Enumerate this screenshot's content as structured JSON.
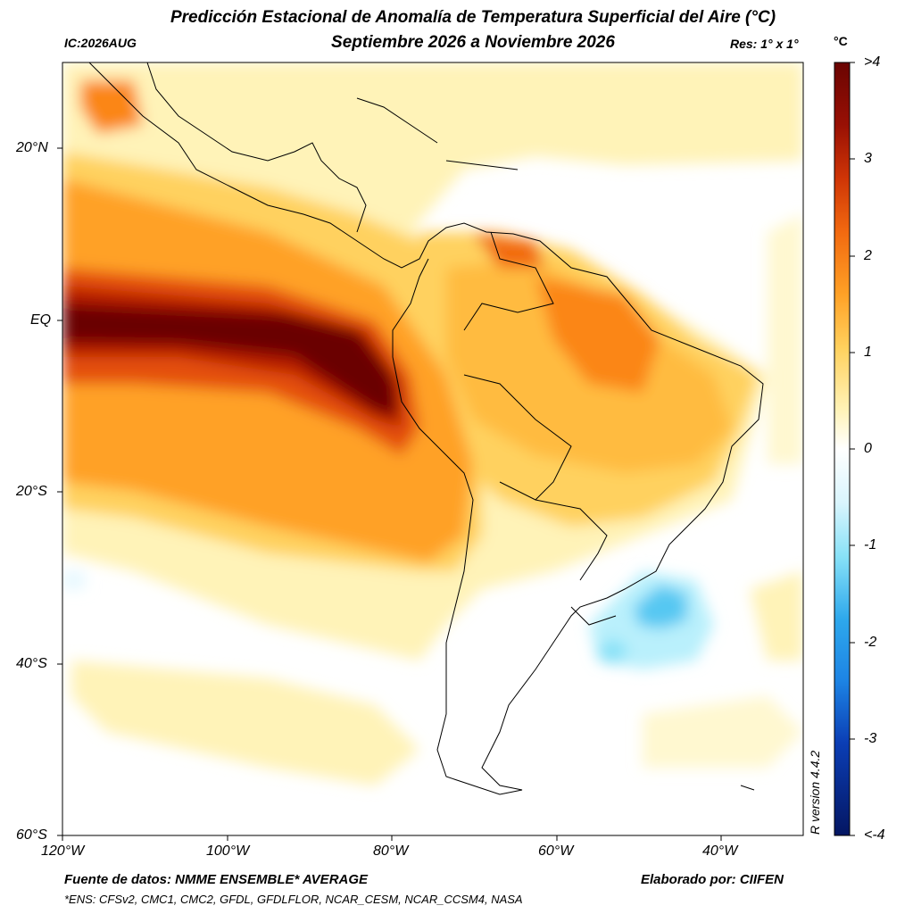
{
  "header": {
    "title": "Predicción Estacional de Anomalía de Temperatura Superficial del Aire (°C)",
    "subtitle": "Septiembre 2026 a Noviembre 2026",
    "ic": "IC:2026AUG",
    "res": "Res: 1° x 1°"
  },
  "map": {
    "lat_labels": [
      "20°N",
      "EQ",
      "20°S",
      "40°S",
      "60°S"
    ],
    "lon_labels": [
      "120°W",
      "100°W",
      "80°W",
      "60°W",
      "40°W"
    ],
    "extent": {
      "lon": [
        -120,
        -30
      ],
      "lat": [
        -60,
        30
      ]
    }
  },
  "colorbar": {
    "unit": "°C",
    "tick_labels": [
      ">4",
      "3",
      "2",
      "1",
      "0",
      "-1",
      "-2",
      "-3",
      "<-4"
    ],
    "range": [
      -4,
      4
    ],
    "colors_warm": [
      "#fffde0",
      "#fff3b8",
      "#ffe48a",
      "#ffd15e",
      "#ffbb40",
      "#ffa126",
      "#fb8618",
      "#f26a10",
      "#e4500a",
      "#cf3506",
      "#b81f04",
      "#981004",
      "#6a0402"
    ],
    "colors_cold": [
      "#e5f8ff",
      "#b9f0fc",
      "#87e1f7",
      "#56c8f2",
      "#2ea8ec",
      "#1d84e4",
      "#155fd8",
      "#0b3eb5",
      "#06278f",
      "#041662"
    ]
  },
  "footer": {
    "version": "R version 4.4.2",
    "source": "Fuente de datos: NMME ENSEMBLE* AVERAGE",
    "author": "Elaborado por: CIIFEN",
    "ensemble": "*ENS: CFSv2, CMC1, CMC2, GFDL, GFDLFLOR, NCAR_CESM, NCAR_CCSM4, NASA"
  }
}
